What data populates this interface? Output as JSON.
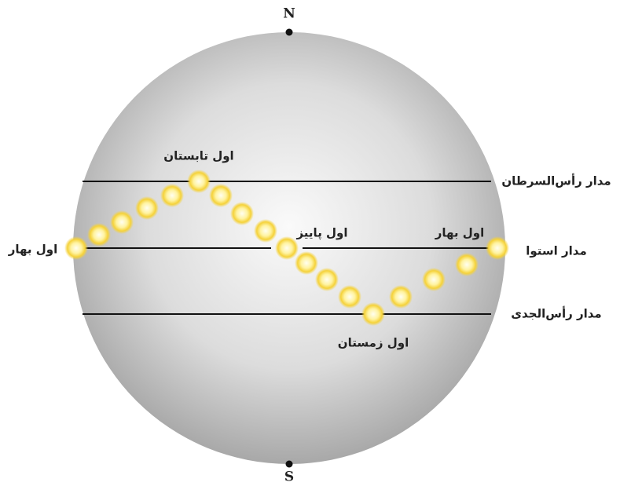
{
  "poles": {
    "north": "N",
    "south": "S"
  },
  "circles": {
    "cancer": "مدار رأس‌السرطان",
    "equator": "مدار استوا",
    "capricorn": "مدار رأس‌الجدی"
  },
  "seasons": {
    "spring_left": "اول بهار",
    "summer": "اول تابستان",
    "autumn": "اول پاییز",
    "spring_right": "اول بهار",
    "winter": "اول زمستان"
  }
}
